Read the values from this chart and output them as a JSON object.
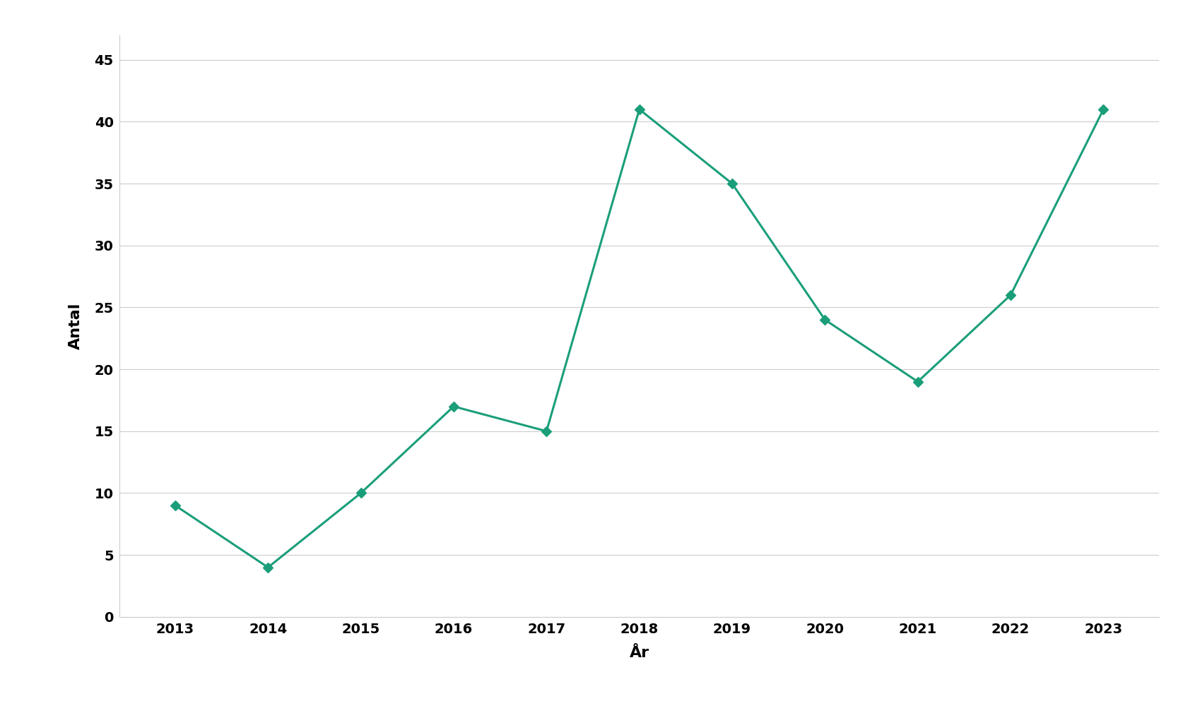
{
  "years": [
    2013,
    2014,
    2015,
    2016,
    2017,
    2018,
    2019,
    2020,
    2021,
    2022,
    2023
  ],
  "values": [
    9,
    4,
    10,
    17,
    15,
    41,
    35,
    24,
    19,
    26,
    41
  ],
  "line_color": "#1a9e7a",
  "marker": "D",
  "marker_size": 7,
  "line_width": 2.2,
  "xlabel": "År",
  "ylabel": "Antal",
  "ylim": [
    0,
    47
  ],
  "yticks": [
    0,
    5,
    10,
    15,
    20,
    25,
    30,
    35,
    40,
    45
  ],
  "xticks": [
    2013,
    2014,
    2015,
    2016,
    2017,
    2018,
    2019,
    2020,
    2021,
    2022,
    2023
  ],
  "background_color": "#ffffff",
  "grid_color": "#cccccc",
  "xlabel_fontsize": 16,
  "ylabel_fontsize": 16,
  "tick_fontsize": 14,
  "xlim": [
    2012.4,
    2023.6
  ]
}
